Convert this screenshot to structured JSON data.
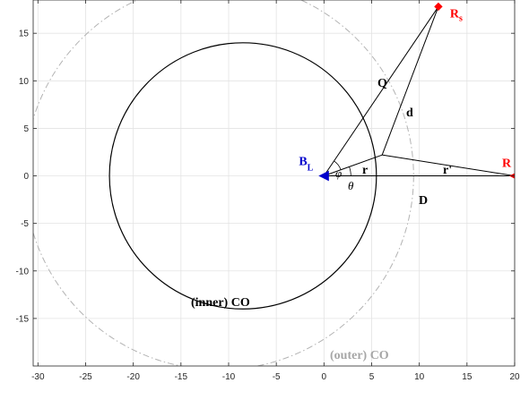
{
  "chart_data": {
    "type": "diagram",
    "xlim": [
      -30.5,
      20
    ],
    "ylim": [
      -20,
      18.5
    ],
    "x_ticks": [
      -30,
      -25,
      -20,
      -15,
      -10,
      -5,
      0,
      5,
      10,
      15,
      20
    ],
    "y_ticks": [
      -15,
      -10,
      -5,
      0,
      5,
      10,
      15
    ],
    "x_tick_labels": [
      "-30",
      "-25",
      "-20",
      "-15",
      "-10",
      "-5",
      "0",
      "5",
      "10",
      "15",
      "20"
    ],
    "y_tick_labels": [
      "-15",
      "-10",
      "-5",
      "0",
      "5",
      "10",
      "15"
    ],
    "grid": true,
    "points": {
      "BL": {
        "x": 0,
        "y": 0,
        "color": "#0000cc"
      },
      "R": {
        "x": 20,
        "y": 0,
        "color": "#ff0000"
      },
      "Rs": {
        "x": 12,
        "y": 17.8,
        "color": "#ff0000"
      },
      "P": {
        "x": 6.1,
        "y": 2.2
      }
    },
    "circles": {
      "inner": {
        "cx": -8.5,
        "cy": 0,
        "r": 14,
        "color": "#000000",
        "style": "solid"
      },
      "outer": {
        "cx": -11,
        "cy": 0,
        "r": 20.4,
        "color": "#b3b3b3",
        "style": "dashdot"
      }
    },
    "labels": {
      "Rs_main": "R",
      "Rs_sub": "s",
      "R": "R",
      "BL_main": "B",
      "BL_sub": "L",
      "Q": "Q",
      "d": "d",
      "r": "r",
      "r_prime": "r'",
      "D": "D",
      "phi": "φ",
      "theta": "θ",
      "inner_co": "(inner) CO",
      "outer_co": "(outer) CO"
    }
  }
}
